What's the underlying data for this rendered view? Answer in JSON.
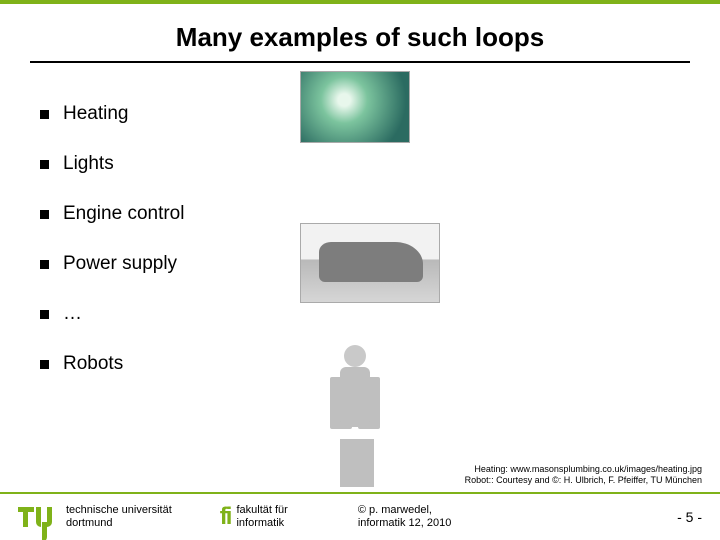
{
  "title": "Many examples of such loops",
  "bullets": {
    "b0": "Heating",
    "b1": "Lights",
    "b2": "Engine control",
    "b3": "Power supply",
    "b4": "…",
    "b5": "Robots"
  },
  "credits": {
    "line1": "Heating: www.masonsplumbing.co.uk/images/heating.jpg",
    "line2": "Robot:: Courtesy and ©: H. Ulbrich, F. Pfeiffer, TU München"
  },
  "footer": {
    "uni_line1": "technische universität",
    "uni_line2": "dortmund",
    "fak_line1": "fakultät für",
    "fak_line2": "informatik",
    "copy_line1": "© p. marwedel,",
    "copy_line2": "informatik 12, 2010",
    "page": "- 5 -"
  },
  "colors": {
    "accent": "#7fb219",
    "text": "#000000",
    "background": "#ffffff"
  }
}
